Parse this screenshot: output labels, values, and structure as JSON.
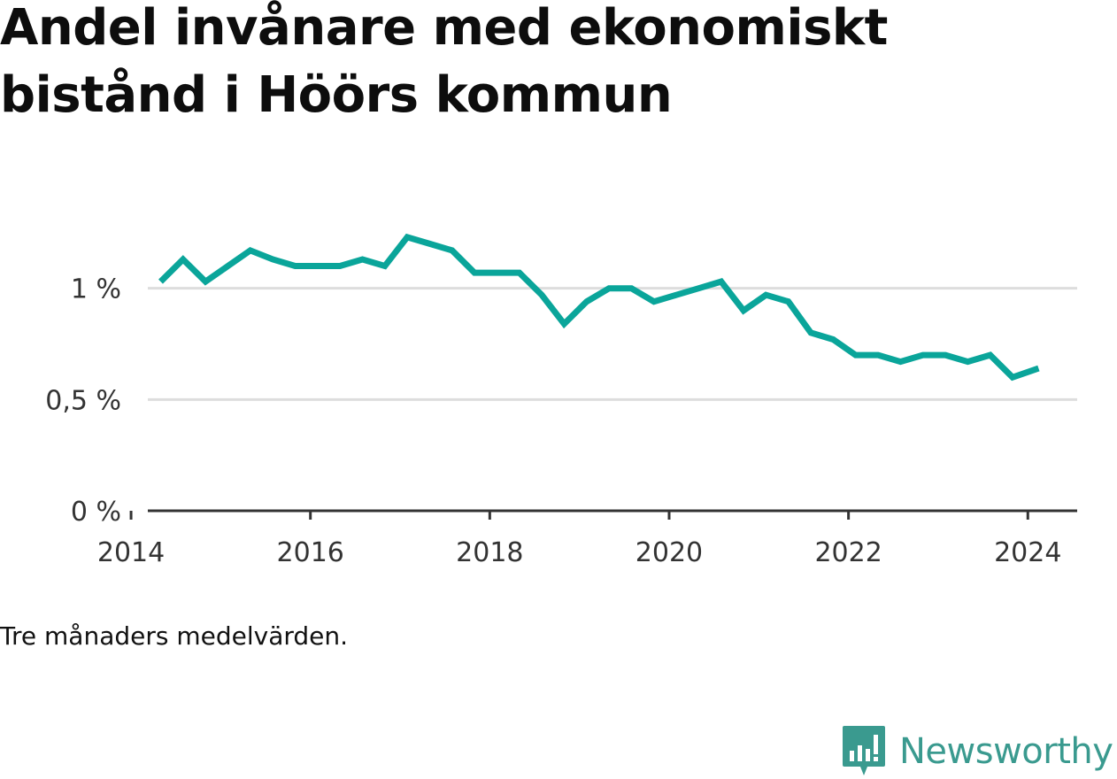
{
  "title": "Andel invånare med ekonomiskt bistånd i Höörs kommun",
  "note": "Tre månaders medelvärden.",
  "brand": {
    "name": "Newsworthy",
    "icon": "newsworthy-logo-icon",
    "color": "#3a9a8f"
  },
  "chart_data": {
    "type": "line",
    "title": "Andel invånare med ekonomiskt bistånd i Höörs kommun",
    "xlabel": "",
    "ylabel": "",
    "xlim": [
      2013.95,
      2024.55
    ],
    "ylim": [
      0,
      1.5
    ],
    "grid": true,
    "legend": "none",
    "line_color": "#0aa59a",
    "x_ticks": [
      {
        "value": 2014,
        "label": "2014"
      },
      {
        "value": 2016,
        "label": "2016"
      },
      {
        "value": 2018,
        "label": "2018"
      },
      {
        "value": 2020,
        "label": "2020"
      },
      {
        "value": 2022,
        "label": "2022"
      },
      {
        "value": 2024,
        "label": "2024"
      }
    ],
    "y_ticks": [
      {
        "value": 0,
        "label": "0 %"
      },
      {
        "value": 0.5,
        "label": "0,5 %"
      },
      {
        "value": 1.0,
        "label": "1 %"
      }
    ],
    "series": [
      {
        "x": [
          2014.33,
          2014.58,
          2014.83,
          2015.08,
          2015.33,
          2015.58,
          2015.83,
          2016.08,
          2016.33,
          2016.58,
          2016.83,
          2017.08,
          2017.33,
          2017.58,
          2017.83,
          2018.08,
          2018.33,
          2018.58,
          2018.83,
          2019.08,
          2019.33,
          2019.58,
          2019.83,
          2020.08,
          2020.33,
          2020.58,
          2020.83,
          2021.08,
          2021.33,
          2021.58,
          2021.83,
          2022.08,
          2022.33,
          2022.58,
          2022.83,
          2023.08,
          2023.33,
          2023.58,
          2023.83,
          2024.12
        ],
        "values": [
          1.03,
          1.13,
          1.03,
          1.1,
          1.17,
          1.13,
          1.1,
          1.1,
          1.1,
          1.13,
          1.1,
          1.23,
          1.2,
          1.17,
          1.07,
          1.07,
          1.07,
          0.97,
          0.84,
          0.94,
          1.0,
          1.0,
          0.94,
          0.97,
          1.0,
          1.03,
          0.9,
          0.97,
          0.94,
          0.8,
          0.77,
          0.7,
          0.7,
          0.67,
          0.7,
          0.7,
          0.67,
          0.7,
          0.6,
          0.64
        ]
      }
    ]
  }
}
